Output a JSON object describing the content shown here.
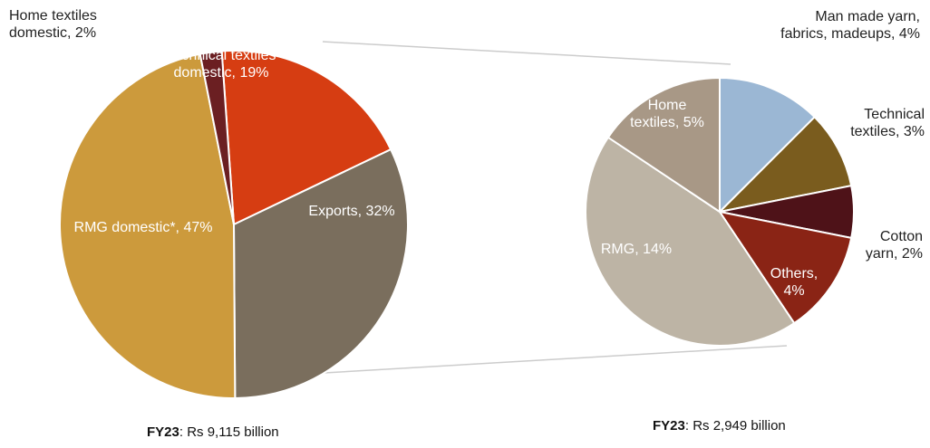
{
  "chart_data": [
    {
      "type": "pie",
      "caption_bold": "FY23",
      "caption_rest": ": Rs 9,115 billion",
      "slices": [
        {
          "label": [
            "Technical textiles",
            "domestic, 19%"
          ],
          "value": 19,
          "color": "#d63d12",
          "text_color": "#ffffff"
        },
        {
          "label": [
            "Exports, 32%"
          ],
          "value": 32,
          "color": "#7a6e5d",
          "text_color": "#ffffff"
        },
        {
          "label": [
            "RMG domestic*, 47%"
          ],
          "value": 47,
          "color": "#cc9a3c",
          "text_color": "#ffffff"
        },
        {
          "label": [
            "Home textiles",
            "domestic, 2%"
          ],
          "value": 2,
          "color": "#6b1f22",
          "text_color": "#222222"
        }
      ]
    },
    {
      "type": "pie",
      "caption_bold": "FY23",
      "caption_rest": ": Rs 2,949 billion",
      "slices": [
        {
          "label": [
            "Man made yarn,",
            "fabrics, madeups, 4%"
          ],
          "value": 4,
          "color": "#9bb7d4",
          "text_color": "#222222"
        },
        {
          "label": [
            "Technical",
            "textiles, 3%"
          ],
          "value": 3,
          "color": "#7a5c1e",
          "text_color": "#222222"
        },
        {
          "label": [
            "Cotton",
            "yarn, 2%"
          ],
          "value": 2,
          "color": "#4e1218",
          "text_color": "#222222"
        },
        {
          "label": [
            "Others,",
            "4%"
          ],
          "value": 4,
          "color": "#8a2415",
          "text_color": "#ffffff"
        },
        {
          "label": [
            "RMG, 14%"
          ],
          "value": 14,
          "color": "#bdb4a5",
          "text_color": "#ffffff"
        },
        {
          "label": [
            "Home",
            "textiles, 5%"
          ],
          "value": 5,
          "color": "#a89886",
          "text_color": "#ffffff"
        }
      ]
    }
  ]
}
